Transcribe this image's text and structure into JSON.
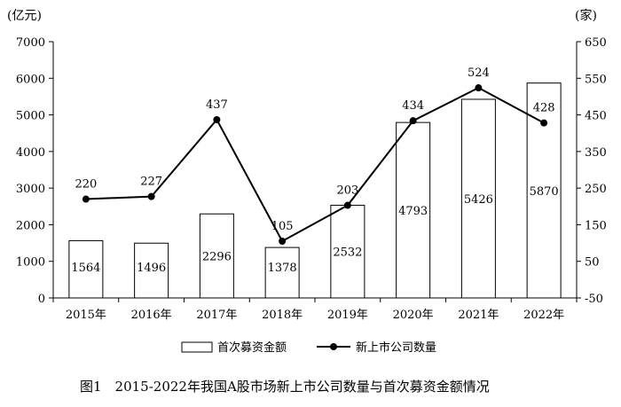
{
  "chart_data": {
    "type": "bar",
    "categories": [
      "2015年",
      "2016年",
      "2017年",
      "2018年",
      "2019年",
      "2020年",
      "2021年",
      "2022年"
    ],
    "series": [
      {
        "name": "首次募资金额",
        "type": "bar",
        "axis": "left",
        "values": [
          1564,
          1496,
          2296,
          1378,
          2532,
          4793,
          5426,
          5870
        ]
      },
      {
        "name": "新上市公司数量",
        "type": "line",
        "axis": "right",
        "values": [
          220,
          227,
          437,
          105,
          203,
          434,
          524,
          428
        ]
      }
    ],
    "left_axis": {
      "unit": "(亿元)",
      "ylim": [
        0,
        7000
      ],
      "ticks": [
        "0",
        "1000",
        "2000",
        "3000",
        "4000",
        "5000",
        "6000",
        "7000"
      ]
    },
    "right_axis": {
      "unit": "(家)",
      "ylim": [
        -50,
        650
      ],
      "ticks": [
        "-50",
        "50",
        "150",
        "250",
        "350",
        "450",
        "550",
        "650"
      ]
    },
    "grid": false,
    "legend_position": "bottom",
    "title": "图1　2015-2022年我国A股市场新上市公司数量与首次募资金额情况"
  }
}
